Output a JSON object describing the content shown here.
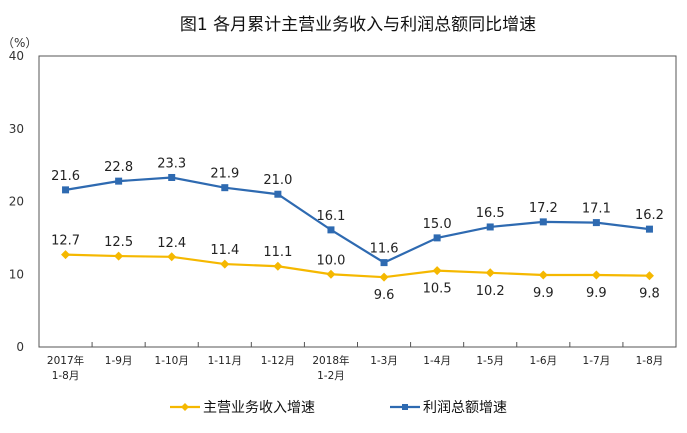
{
  "chart_data": {
    "type": "line",
    "title": "图1 各月累计主营业务收入与利润总额同比增速",
    "ylabel": "（%）",
    "ylim": [
      0,
      40
    ],
    "yticks": [
      0,
      10,
      20,
      30,
      40
    ],
    "grid": false,
    "legend_position": "bottom",
    "categories": [
      [
        "2017年",
        "1-8月"
      ],
      [
        "1-9月"
      ],
      [
        "1-10月"
      ],
      [
        "1-11月"
      ],
      [
        "1-12月"
      ],
      [
        "2018年",
        "1-2月"
      ],
      [
        "1-3月"
      ],
      [
        "1-4月"
      ],
      [
        "1-5月"
      ],
      [
        "1-6月"
      ],
      [
        "1-7月"
      ],
      [
        "1-8月"
      ]
    ],
    "series": [
      {
        "name": "主营业务收入增速",
        "color": "#F5B800",
        "marker": "diamond",
        "values": [
          12.7,
          12.5,
          12.4,
          11.4,
          11.1,
          10.0,
          9.6,
          10.5,
          10.2,
          9.9,
          9.9,
          9.8
        ],
        "labels": [
          "12.7",
          "12.5",
          "12.4",
          "11.4",
          "11.1",
          "10.0",
          "9.6",
          "10.5",
          "10.2",
          "9.9",
          "9.9",
          "9.8"
        ]
      },
      {
        "name": "利润总额增速",
        "color": "#2E6AB1",
        "marker": "square",
        "values": [
          21.6,
          22.8,
          23.3,
          21.9,
          21.0,
          16.1,
          11.6,
          15.0,
          16.5,
          17.2,
          17.1,
          16.2
        ],
        "labels": [
          "21.6",
          "22.8",
          "23.3",
          "21.9",
          "21.0",
          "16.1",
          "11.6",
          "15.0",
          "16.5",
          "17.2",
          "17.1",
          "16.2"
        ]
      }
    ]
  }
}
